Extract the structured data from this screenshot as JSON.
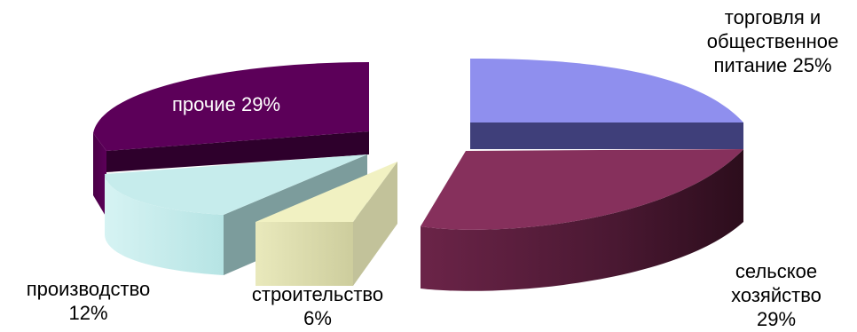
{
  "chart_data": {
    "type": "pie",
    "style": "3d-exploded",
    "slices": [
      {
        "id": "trade",
        "label_lines": [
          "торговля и",
          "общественное",
          "питание 25%"
        ],
        "value": 25,
        "color": "#8f8fee"
      },
      {
        "id": "agriculture",
        "label_lines": [
          "сельское",
          "хозяйство",
          "29%"
        ],
        "value": 29,
        "color": "#86305c"
      },
      {
        "id": "construction",
        "label_lines": [
          "строительство",
          "6%"
        ],
        "value": 6,
        "color": "#f1f1c2"
      },
      {
        "id": "production",
        "label_lines": [
          "производство",
          "12%"
        ],
        "value": 12,
        "color": "#c6ecec"
      },
      {
        "id": "other",
        "label_lines": [
          "прочие 29%"
        ],
        "value": 29,
        "color": "#5c0059"
      }
    ]
  }
}
